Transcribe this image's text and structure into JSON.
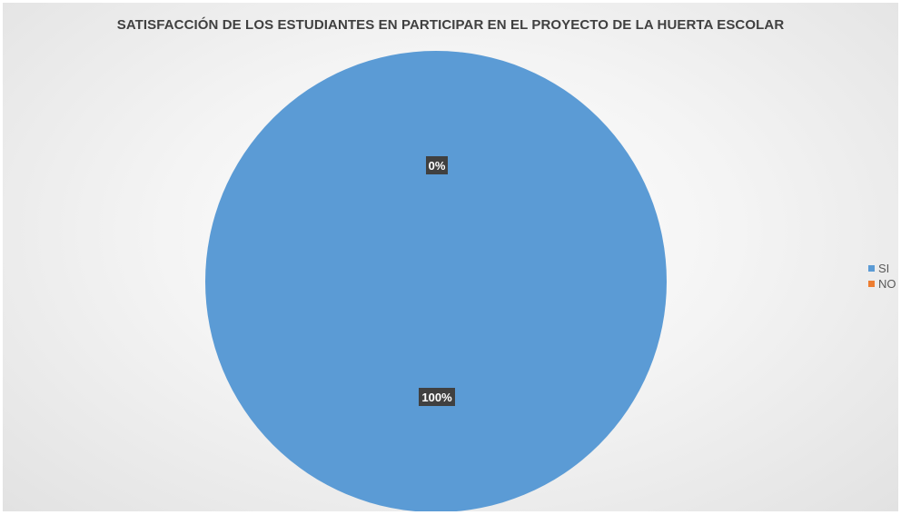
{
  "chart_data": {
    "type": "pie",
    "title": "SATISFACCIÓN DE LOS ESTUDIANTES EN PARTICIPAR EN EL PROYECTO DE LA HUERTA ESCOLAR",
    "categories": [
      "SI",
      "NO"
    ],
    "values": [
      100,
      0
    ],
    "data_labels": [
      "100%",
      "0%"
    ],
    "colors": [
      "#5b9bd5",
      "#ed7d31"
    ],
    "legend": {
      "position": "right",
      "items": [
        {
          "label": "SI",
          "color": "#5b9bd5"
        },
        {
          "label": "NO",
          "color": "#ed7d31"
        }
      ]
    },
    "label_style": {
      "background": "#404040",
      "text_color": "#ffffff"
    }
  }
}
